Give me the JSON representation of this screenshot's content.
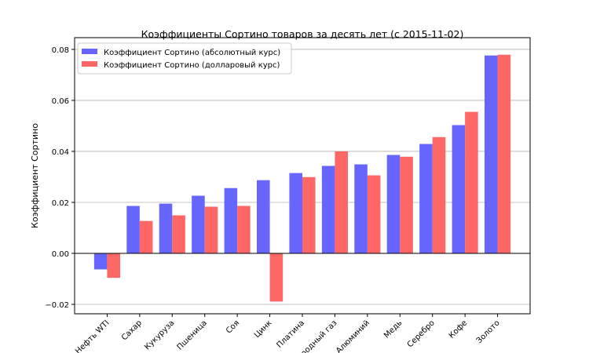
{
  "chart_data": {
    "type": "bar",
    "title": "Коэффициенты Сортино товаров за десять лет (с 2015-11-02)",
    "xlabel": "",
    "ylabel": "Коэффициент Сортино",
    "ylim": [
      -0.0237,
      0.0846
    ],
    "yticks": [
      -0.02,
      0.0,
      0.02,
      0.04,
      0.06,
      0.08
    ],
    "ytick_labels": [
      "−0.02",
      "0.00",
      "0.02",
      "0.04",
      "0.06",
      "0.08"
    ],
    "grid": "horizontal",
    "legend": "top-left",
    "categories": [
      "Нефть WTI",
      "Сахар",
      "Кукуруза",
      "Пшеница",
      "Соя",
      "Цинк",
      "Платина",
      "Природный газ",
      "Алюминий",
      "Медь",
      "Серебро",
      "Кофе",
      "Золото"
    ],
    "series": [
      {
        "name": "Коэффициент Сортино (абсолютный курс)",
        "color": "#6666ff",
        "values": [
          -0.0063,
          0.0186,
          0.0195,
          0.0226,
          0.0256,
          0.0287,
          0.0315,
          0.0343,
          0.0349,
          0.0386,
          0.0429,
          0.0503,
          0.0776
        ]
      },
      {
        "name": "Коэффициент Сортино (долларовый курс)",
        "color": "#ff6666",
        "values": [
          -0.0096,
          0.0127,
          0.0149,
          0.0183,
          0.0186,
          -0.0189,
          0.0299,
          0.04,
          0.0306,
          0.0379,
          0.0456,
          0.0555,
          0.0779
        ]
      }
    ]
  }
}
